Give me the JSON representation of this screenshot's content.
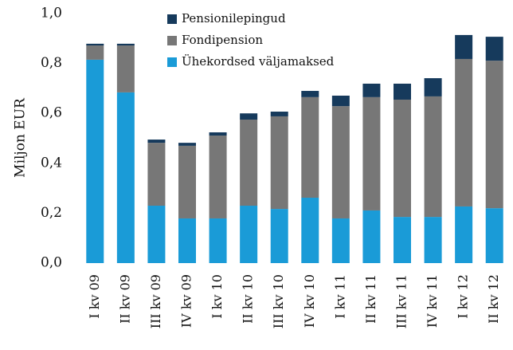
{
  "chart_data": {
    "type": "stacked_bar",
    "ylabel": "Miljon EUR",
    "categories": [
      "I kv 09",
      "II kv 09",
      "III kv 09",
      "IV kv 09",
      "I kv 10",
      "II kv 10",
      "III kv 10",
      "IV kv 10",
      "I kv 11",
      "II kv 11",
      "III kv 11",
      "IV kv 11",
      "I kv 12",
      "II kv 12"
    ],
    "series": [
      {
        "name": "Ühekordsed väljamaksed",
        "color": "#1a9bd7",
        "values": [
          0.815,
          0.684,
          0.23,
          0.179,
          0.179,
          0.23,
          0.217,
          0.262,
          0.179,
          0.211,
          0.185,
          0.185,
          0.227,
          0.22
        ]
      },
      {
        "name": "Fondipension",
        "color": "#777777",
        "values": [
          0.057,
          0.188,
          0.252,
          0.291,
          0.332,
          0.345,
          0.371,
          0.403,
          0.45,
          0.454,
          0.47,
          0.483,
          0.591,
          0.591
        ]
      },
      {
        "name": "Pensionilepingud",
        "color": "#163a5c",
        "values": [
          0.007,
          0.007,
          0.013,
          0.012,
          0.013,
          0.025,
          0.019,
          0.025,
          0.042,
          0.054,
          0.064,
          0.073,
          0.096,
          0.096
        ]
      }
    ],
    "ylim": [
      0,
      1
    ],
    "yticks": [
      {
        "value": 0,
        "label": "0,0"
      },
      {
        "value": 0.2,
        "label": "0,2"
      },
      {
        "value": 0.4,
        "label": "0,4"
      },
      {
        "value": 0.6,
        "label": "0,6"
      },
      {
        "value": 0.8,
        "label": "0,8"
      },
      {
        "value": 1,
        "label": "1,0"
      }
    ],
    "legend": "top-left"
  }
}
